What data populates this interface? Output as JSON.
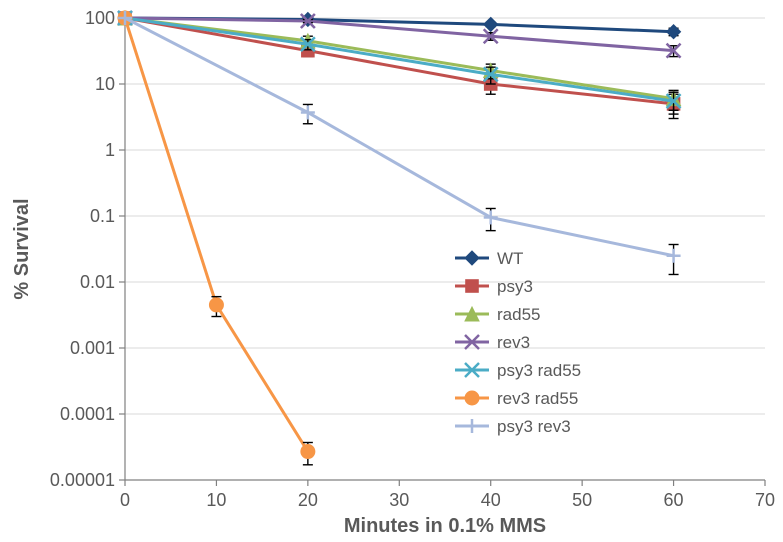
{
  "chart": {
    "type": "line",
    "background_color": "#ffffff",
    "plot_bg_color": "#ffffff",
    "grid_color": "#d9d9d9",
    "axis_color": "#808080",
    "text_color": "#595959",
    "title_fontsize": 20,
    "tick_fontsize": 18,
    "legend_fontsize": 17,
    "line_width": 3,
    "marker_size": 7,
    "x": {
      "label": "Minutes in 0.1% MMS",
      "min": 0,
      "max": 70,
      "tick_step": 10,
      "ticks": [
        0,
        10,
        20,
        30,
        40,
        50,
        60,
        70
      ]
    },
    "y": {
      "label": "% Survival",
      "scale": "log",
      "min_exp": -5,
      "max_exp": 2,
      "ticks": [
        {
          "exp": -5,
          "label": "0.00001"
        },
        {
          "exp": -4,
          "label": "0.0001"
        },
        {
          "exp": -3,
          "label": "0.001"
        },
        {
          "exp": -2,
          "label": "0.01"
        },
        {
          "exp": -1,
          "label": "0.1"
        },
        {
          "exp": 0,
          "label": "1"
        },
        {
          "exp": 1,
          "label": "10"
        },
        {
          "exp": 2,
          "label": "100"
        }
      ]
    },
    "legend": {
      "position": "inside-right-center",
      "items_order": [
        "WT",
        "psy3",
        "rad55",
        "rev3",
        "psy3 rad55",
        "rev3 rad55",
        "psy3 rev3"
      ]
    },
    "series": {
      "WT": {
        "label": "WT",
        "color": "#1f497d",
        "marker": "diamond",
        "points": [
          {
            "x": 0,
            "y": 100,
            "err_lo": 0,
            "err_hi": 0
          },
          {
            "x": 20,
            "y": 95,
            "err_lo": 4,
            "err_hi": 4
          },
          {
            "x": 40,
            "y": 80,
            "err_lo": 6,
            "err_hi": 6
          },
          {
            "x": 60,
            "y": 62,
            "err_lo": 8,
            "err_hi": 8
          }
        ]
      },
      "psy3": {
        "label": "psy3",
        "color": "#c0504d",
        "marker": "square",
        "points": [
          {
            "x": 0,
            "y": 100,
            "err_lo": 0,
            "err_hi": 0
          },
          {
            "x": 20,
            "y": 32,
            "err_lo": 6,
            "err_hi": 6
          },
          {
            "x": 40,
            "y": 10,
            "err_lo": 3,
            "err_hi": 3
          },
          {
            "x": 60,
            "y": 5,
            "err_lo": 2,
            "err_hi": 2
          }
        ]
      },
      "rad55": {
        "label": "rad55",
        "color": "#9bbb59",
        "marker": "triangle",
        "points": [
          {
            "x": 0,
            "y": 100,
            "err_lo": 0,
            "err_hi": 0
          },
          {
            "x": 20,
            "y": 45,
            "err_lo": 8,
            "err_hi": 8
          },
          {
            "x": 40,
            "y": 16,
            "err_lo": 4,
            "err_hi": 4
          },
          {
            "x": 60,
            "y": 6,
            "err_lo": 2,
            "err_hi": 2
          }
        ]
      },
      "rev3": {
        "label": "rev3",
        "color": "#8064a2",
        "marker": "x",
        "points": [
          {
            "x": 0,
            "y": 100,
            "err_lo": 0,
            "err_hi": 0
          },
          {
            "x": 20,
            "y": 90,
            "err_lo": 5,
            "err_hi": 5
          },
          {
            "x": 40,
            "y": 53,
            "err_lo": 7,
            "err_hi": 7
          },
          {
            "x": 60,
            "y": 32,
            "err_lo": 6,
            "err_hi": 6
          }
        ]
      },
      "psy3 rad55": {
        "label": "psy3 rad55",
        "color": "#4bacc6",
        "marker": "x",
        "points": [
          {
            "x": 0,
            "y": 100,
            "err_lo": 0,
            "err_hi": 0
          },
          {
            "x": 20,
            "y": 40,
            "err_lo": 7,
            "err_hi": 7
          },
          {
            "x": 40,
            "y": 14,
            "err_lo": 4,
            "err_hi": 4
          },
          {
            "x": 60,
            "y": 5.5,
            "err_lo": 2,
            "err_hi": 2
          }
        ]
      },
      "rev3 rad55": {
        "label": "rev3 rad55",
        "color": "#f79646",
        "marker": "circle",
        "points": [
          {
            "x": 0,
            "y": 100,
            "err_lo": 0,
            "err_hi": 0
          },
          {
            "x": 10,
            "y": 0.0045,
            "err_lo": 0.0015,
            "err_hi": 0.0015
          },
          {
            "x": 20,
            "y": 2.7e-05,
            "err_lo": 1e-05,
            "err_hi": 1e-05
          }
        ]
      },
      "psy3 rev3": {
        "label": "psy3 rev3",
        "color": "#a6b8dc",
        "marker": "plus",
        "points": [
          {
            "x": 0,
            "y": 100,
            "err_lo": 0,
            "err_hi": 0
          },
          {
            "x": 20,
            "y": 3.7,
            "err_lo": 1.2,
            "err_hi": 1.2
          },
          {
            "x": 40,
            "y": 0.095,
            "err_lo": 0.035,
            "err_hi": 0.035
          },
          {
            "x": 60,
            "y": 0.025,
            "err_lo": 0.012,
            "err_hi": 0.012
          }
        ]
      }
    }
  }
}
